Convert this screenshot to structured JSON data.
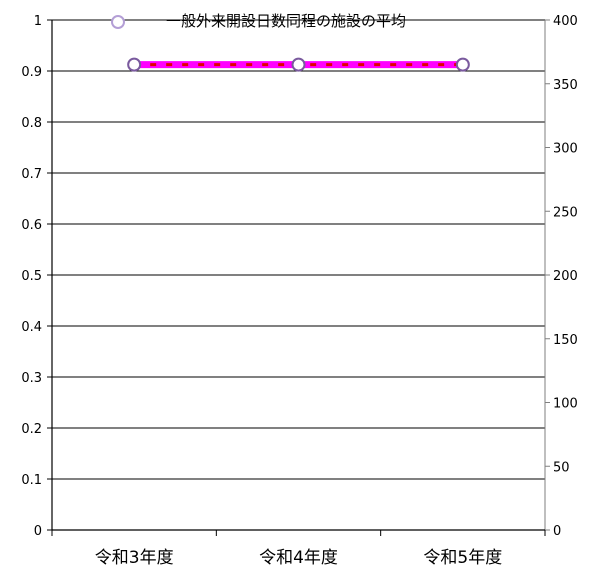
{
  "chart_data": {
    "type": "line",
    "title": "",
    "xlabel": "",
    "ylabel": "",
    "categories": [
      "令和3年度",
      "令和4年度",
      "令和5年度"
    ],
    "y_left": {
      "ylim": [
        0,
        1
      ],
      "ticks": [
        0,
        0.1,
        0.2,
        0.3,
        0.4,
        0.5,
        0.6,
        0.7,
        0.8,
        0.9,
        1
      ],
      "tick_labels": [
        "0",
        "0.1",
        "0.2",
        "0.3",
        "0.4",
        "0.5",
        "0.6",
        "0.7",
        "0.8",
        "0.9",
        "1"
      ]
    },
    "y_right": {
      "ylim": [
        0,
        400
      ],
      "ticks": [
        0,
        50,
        100,
        150,
        200,
        250,
        300,
        350,
        400
      ],
      "tick_labels": [
        "0",
        "50",
        "100",
        "150",
        "200",
        "250",
        "300",
        "350",
        "400"
      ]
    },
    "series": [
      {
        "name": "一般外来開設日数同程の施設の平均",
        "axis": "right",
        "values": [
          365,
          365,
          365
        ],
        "color": "#ff00ff",
        "dash_color": "#e00000",
        "marker": "circle",
        "marker_edge": "#7a5a9e"
      }
    ],
    "grid": true,
    "legend_position": "top"
  },
  "legend": {
    "marker_color": "#b49fd6",
    "label_visible": "一般外来開設日数同程の施設の平均"
  }
}
